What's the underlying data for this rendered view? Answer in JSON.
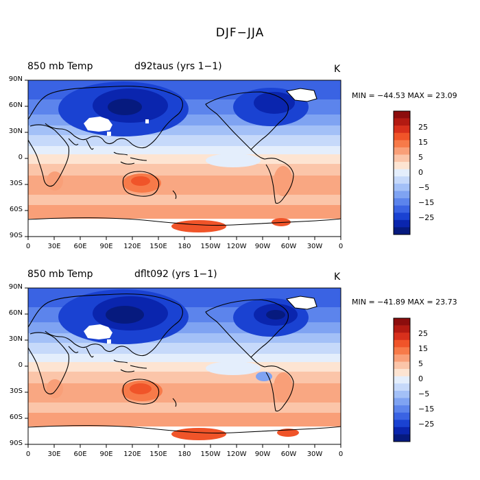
{
  "title": "DJF−JJA",
  "panels": [
    {
      "field": "850 mb Temp",
      "run": "d92taus (yrs 1−1)",
      "units": "K",
      "minmax": "MIN = −44.53 MAX =  23.09"
    },
    {
      "field": "850 mb Temp",
      "run": "dflt092 (yrs 1−1)",
      "units": "K",
      "minmax": "MIN = −41.89 MAX =  23.73"
    }
  ],
  "lat_ticks": [
    "90N",
    "60N",
    "30N",
    "0",
    "30S",
    "60S",
    "90S"
  ],
  "lon_ticks": [
    "0",
    "30E",
    "60E",
    "90E",
    "120E",
    "150E",
    "180",
    "150W",
    "120W",
    "90W",
    "60W",
    "30W",
    "0"
  ],
  "colorbar": {
    "colors": [
      "#8c0d0d",
      "#b31a12",
      "#d8301c",
      "#f05429",
      "#f77a49",
      "#f99f78",
      "#fbc5a9",
      "#fde4d2",
      "#e4eefc",
      "#c6d9fa",
      "#a3c0f7",
      "#7fa3f2",
      "#5c84ec",
      "#3a63e3",
      "#1a42d2",
      "#0a25ae",
      "#061a7e"
    ],
    "labels": [
      "25",
      "15",
      "5",
      "0",
      "−5",
      "−15",
      "−25"
    ]
  }
}
